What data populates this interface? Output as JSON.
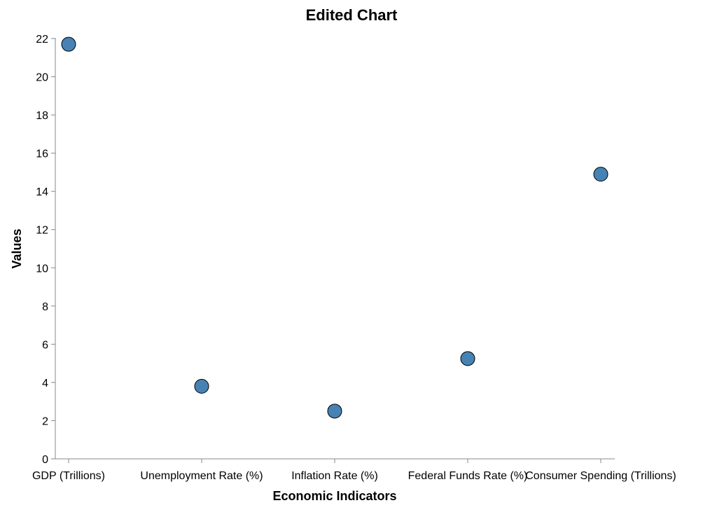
{
  "chart_data": {
    "type": "scatter",
    "title": "Edited Chart",
    "xlabel": "Economic Indicators",
    "ylabel": "Values",
    "categories": [
      "GDP (Trillions)",
      "Unemployment Rate (%)",
      "Inflation Rate (%)",
      "Federal Funds Rate (%)",
      "Consumer Spending (Trillions)"
    ],
    "values": [
      21.7,
      3.8,
      2.5,
      5.25,
      14.9
    ],
    "ylim": [
      0,
      22
    ],
    "yticks": [
      0,
      2,
      4,
      6,
      8,
      10,
      12,
      14,
      16,
      18,
      20,
      22
    ],
    "grid": false,
    "point_color": "#4682b4",
    "point_stroke": "#000000"
  }
}
